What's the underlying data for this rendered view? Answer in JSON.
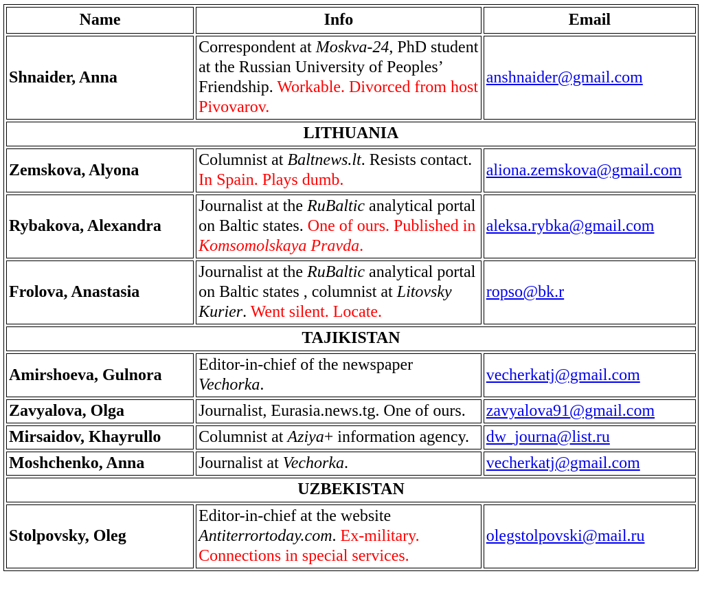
{
  "table": {
    "header": [
      "Name",
      "Info",
      "Email"
    ],
    "rows": [
      {
        "name": "Shnaider, Anna",
        "info": [
          {
            "text": "Correspondent at "
          },
          {
            "text": "Moskva-24",
            "italic": true
          },
          {
            "text": ",  PhD student at the Russian University of Peoples’ Friendship. "
          },
          {
            "text": "Workable. Divorced from host Pivovarov.",
            "color": "#ff0000"
          }
        ],
        "email": "anshnaider@gmail.com"
      },
      {
        "section": "LITHUANIA"
      },
      {
        "name": "Zemskova, Alyona",
        "info": [
          {
            "text": "Columnist  at "
          },
          {
            "text": "Baltnews.lt",
            "italic": true
          },
          {
            "text": ".  Resists contact. "
          },
          {
            "text": "In Spain. Plays dumb.",
            "color": "#ff0000"
          }
        ],
        "email": "aliona.zemskova@gmail.com"
      },
      {
        "name": "Rybakova, Alexandra",
        "info": [
          {
            "text": "Journalist at the "
          },
          {
            "text": "RuBaltic",
            "italic": true
          },
          {
            "text": " analytical portal on Baltic states. "
          },
          {
            "text": "One of ours. Published in ",
            "color": "#ff0000"
          },
          {
            "text": "Komsomolskaya Pravda",
            "italic": true,
            "color": "#ff0000"
          },
          {
            "text": ".",
            "color": "#ff0000"
          }
        ],
        "email": "aleksa.rybka@gmail.com"
      },
      {
        "name": "Frolova, Anastasia",
        "info": [
          {
            "text": "Journalist at the "
          },
          {
            "text": "RuBaltic",
            "italic": true
          },
          {
            "text": " analytical portal on Baltic states , columnist at "
          },
          {
            "text": "Litovsky Kurier",
            "italic": true
          },
          {
            "text": ". "
          },
          {
            "text": "Went silent. Locate.",
            "color": "#ff0000"
          }
        ],
        "email": "ropso@bk.r"
      },
      {
        "section": "TAJIKISTAN"
      },
      {
        "name": "Amirshoeva, Gulnora",
        "info": [
          {
            "text": "Editor-in-chief of the newspaper "
          },
          {
            "text": "Vechorka",
            "italic": true
          },
          {
            "text": "."
          }
        ],
        "email": "vecherkatj@gmail.com"
      },
      {
        "name": "Zavyalova, Olga",
        "info": [
          {
            "text": "Journalist, Eurasia.news.tg. One of ours."
          }
        ],
        "email": "zavyalova91@gmail.com"
      },
      {
        "name": "Mirsaidov, Khayrullo",
        "info": [
          {
            "text": "Columnist at "
          },
          {
            "text": "Aziya",
            "italic": true
          },
          {
            "text": "+ information agency."
          }
        ],
        "email": "dw_journa@list.ru"
      },
      {
        "name": "Moshchenko, Anna",
        "info": [
          {
            "text": "Journalist at "
          },
          {
            "text": "Vechorka",
            "italic": true
          },
          {
            "text": "."
          }
        ],
        "email": "vecherkatj@gmail.com"
      },
      {
        "section": "UZBEKISTAN"
      },
      {
        "name": "Stolpovsky, Oleg",
        "info": [
          {
            "text": "Editor-in-chief at the website "
          },
          {
            "text": "Antiterrortoday.com",
            "italic": true
          },
          {
            "text": ". "
          },
          {
            "text": "Ex-military. Connections in special services.",
            "color": "#ff0000"
          }
        ],
        "email": "olegstolpovski@mail.ru"
      }
    ]
  }
}
